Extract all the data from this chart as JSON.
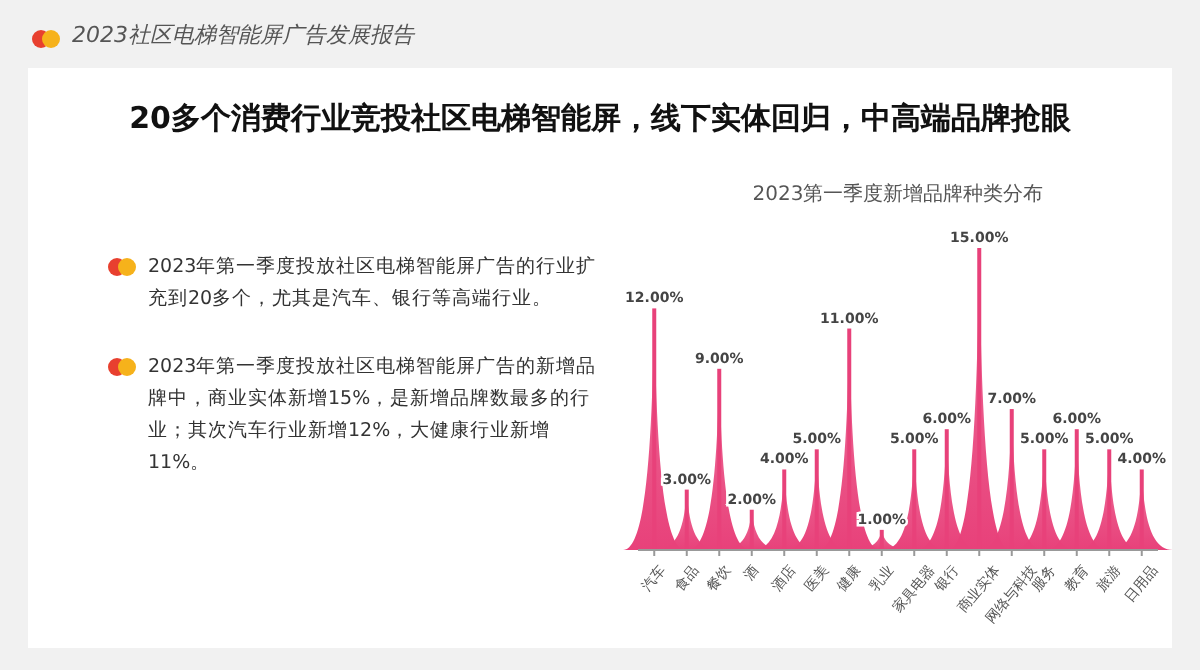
{
  "chart_data": {
    "type": "bar",
    "title": "20多个消费行业竞投社区电梯智能屏，线下实体回归，中高端品牌抢眼",
    "subtitle": "2023第一季度新增品牌种类分布",
    "annotations": [
      "2023社区电梯智能屏广告发展报告",
      "2023年第一季度投放社区电梯智能屏广告的行业扩充到20多个，尤其是汽车、银行等高端行业。",
      "2023年第一季度投放社区电梯智能屏广告的新增品牌中，商业实体新增15%，是新增品牌数最多的行业；其次汽车行业新增12%，大健康行业新增11%。"
    ],
    "categories": [
      "汽车",
      "食品",
      "餐饮",
      "酒",
      "酒店",
      "医美",
      "健康",
      "乳业",
      "家具电器",
      "银行",
      "商业实体",
      "网络与科技",
      "服务",
      "教育",
      "旅游",
      "日用品"
    ],
    "values": [
      12,
      3,
      9,
      2,
      4,
      5,
      11,
      1,
      5,
      6,
      15,
      7,
      5,
      6,
      5,
      4
    ],
    "value_labels": [
      "12.00%",
      "3.00%",
      "9.00%",
      "2.00%",
      "4.00%",
      "5.00%",
      "11.00%",
      "1.00%",
      "5.00%",
      "6.00%",
      "15.00%",
      "7.00%",
      "5.00%",
      "6.00%",
      "5.00%",
      "4.00%"
    ],
    "color": "#e8417a"
  }
}
